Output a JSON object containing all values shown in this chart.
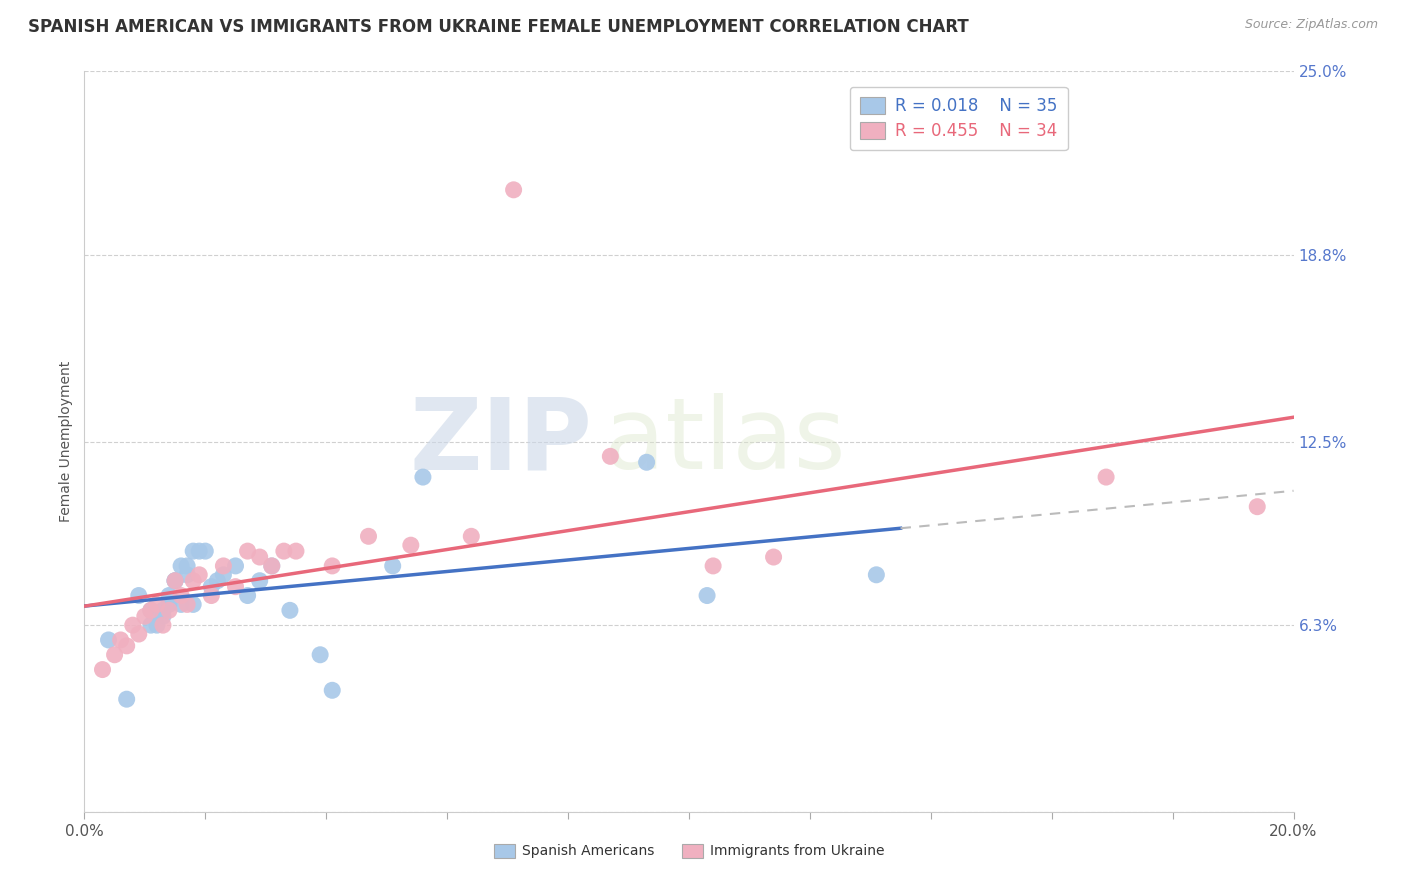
{
  "title": "SPANISH AMERICAN VS IMMIGRANTS FROM UKRAINE FEMALE UNEMPLOYMENT CORRELATION CHART",
  "source": "Source: ZipAtlas.com",
  "ylabel": "Female Unemployment",
  "xlim": [
    0.0,
    0.2
  ],
  "ylim": [
    0.0,
    0.25
  ],
  "yticks": [
    0.0,
    0.063,
    0.125,
    0.188,
    0.25
  ],
  "ytick_labels": [
    "",
    "6.3%",
    "12.5%",
    "18.8%",
    "25.0%"
  ],
  "series1_label": "Spanish Americans",
  "series1_color": "#a8c8e8",
  "series1_R": "0.018",
  "series1_N": "35",
  "series1_x": [
    0.004,
    0.007,
    0.009,
    0.011,
    0.011,
    0.012,
    0.013,
    0.013,
    0.014,
    0.014,
    0.015,
    0.015,
    0.016,
    0.016,
    0.017,
    0.017,
    0.018,
    0.018,
    0.019,
    0.02,
    0.021,
    0.022,
    0.023,
    0.025,
    0.027,
    0.029,
    0.031,
    0.034,
    0.039,
    0.041,
    0.051,
    0.056,
    0.093,
    0.103,
    0.131
  ],
  "series1_y": [
    0.058,
    0.038,
    0.073,
    0.063,
    0.068,
    0.063,
    0.068,
    0.066,
    0.07,
    0.073,
    0.078,
    0.078,
    0.083,
    0.07,
    0.08,
    0.083,
    0.088,
    0.07,
    0.088,
    0.088,
    0.076,
    0.078,
    0.08,
    0.083,
    0.073,
    0.078,
    0.083,
    0.068,
    0.053,
    0.041,
    0.083,
    0.113,
    0.118,
    0.073,
    0.08
  ],
  "series2_label": "Immigrants from Ukraine",
  "series2_color": "#f0b0c0",
  "series2_R": "0.455",
  "series2_N": "34",
  "series2_x": [
    0.003,
    0.005,
    0.006,
    0.007,
    0.008,
    0.009,
    0.01,
    0.011,
    0.012,
    0.013,
    0.014,
    0.015,
    0.016,
    0.017,
    0.018,
    0.019,
    0.021,
    0.023,
    0.025,
    0.027,
    0.029,
    0.031,
    0.033,
    0.035,
    0.041,
    0.047,
    0.054,
    0.064,
    0.071,
    0.087,
    0.104,
    0.114,
    0.169,
    0.194
  ],
  "series2_y": [
    0.048,
    0.053,
    0.058,
    0.056,
    0.063,
    0.06,
    0.066,
    0.068,
    0.07,
    0.063,
    0.068,
    0.078,
    0.073,
    0.07,
    0.078,
    0.08,
    0.073,
    0.083,
    0.076,
    0.088,
    0.086,
    0.083,
    0.088,
    0.088,
    0.083,
    0.093,
    0.09,
    0.093,
    0.21,
    0.12,
    0.083,
    0.086,
    0.113,
    0.103
  ],
  "trend1_color": "#4472c4",
  "trend2_color": "#e8687a",
  "trend1_solid_end": 0.135,
  "watermark_zip": "ZIP",
  "watermark_atlas": "atlas",
  "title_fontsize": 12,
  "label_fontsize": 10,
  "tick_fontsize": 11,
  "legend_fontsize": 12,
  "background_color": "#ffffff",
  "grid_color": "#d0d0d0"
}
